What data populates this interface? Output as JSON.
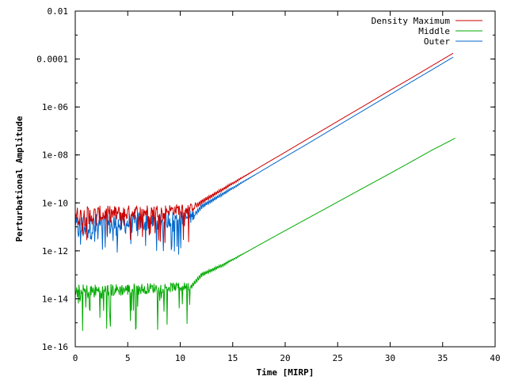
{
  "chart_data": {
    "type": "line",
    "title": "",
    "xlabel": "Time [MIRP]",
    "ylabel": "Perturbational Amplitude",
    "xlim": [
      0,
      40
    ],
    "ylim": [
      1e-16,
      0.01
    ],
    "yscale": "log",
    "x_ticks": [
      0,
      5,
      10,
      15,
      20,
      25,
      30,
      35,
      40
    ],
    "x_tick_labels": [
      "0",
      "5",
      "10",
      "15",
      "20",
      "25",
      "30",
      "35",
      "40"
    ],
    "y_ticks": [
      1e-16,
      1e-14,
      1e-12,
      1e-10,
      1e-08,
      1e-06,
      0.0001,
      0.01
    ],
    "y_tick_labels": [
      "1e-16",
      "1e-14",
      "1e-12",
      "1e-10",
      "1e-08",
      "1e-06",
      "0.0001",
      "0.01"
    ],
    "grid": false,
    "legend_position": "top-right",
    "series": [
      {
        "name": "Density Maximum",
        "color": "#cc0000",
        "x": [
          0,
          11,
          12,
          14,
          16,
          18,
          20,
          22,
          24,
          26,
          28,
          30,
          32,
          34,
          36
        ],
        "y": [
          2e-11,
          5e-11,
          1.1e-10,
          3.6e-10,
          1.2e-09,
          4e-09,
          1.3e-08,
          4.3e-08,
          1.4e-07,
          4.6e-07,
          1.5e-06,
          5e-06,
          1.6e-05,
          5.3e-05,
          0.000175
        ],
        "noisy_until": 11.5,
        "noise_range": [
          2e-12,
          1.2e-10
        ]
      },
      {
        "name": "Middle",
        "color": "#00aa00",
        "x": [
          0,
          11,
          12,
          14,
          16,
          18,
          20,
          22,
          24,
          26,
          28,
          30,
          32,
          34,
          36.2
        ],
        "y": [
          1.5e-14,
          3e-14,
          1e-13,
          2.5e-13,
          7.5e-13,
          2.3e-12,
          7e-12,
          2.1e-11,
          6.3e-11,
          1.9e-10,
          5.7e-10,
          1.7e-09,
          5.2e-09,
          1.6e-08,
          5e-08
        ],
        "noisy_until": 11,
        "noise_range": [
          4e-16,
          6e-14
        ]
      },
      {
        "name": "Outer",
        "color": "#0066cc",
        "x": [
          0,
          11,
          12,
          14,
          16,
          18,
          20,
          22,
          24,
          26,
          28,
          30,
          32,
          34,
          36
        ],
        "y": [
          6e-12,
          2e-11,
          7e-11,
          2.3e-10,
          7.6e-10,
          2.5e-09,
          8.3e-09,
          2.7e-08,
          9e-08,
          3e-07,
          1e-06,
          3.3e-06,
          1.1e-05,
          3.6e-05,
          0.00012
        ],
        "noisy_until": 11.5,
        "noise_range": [
          6e-13,
          7e-11
        ]
      }
    ]
  }
}
